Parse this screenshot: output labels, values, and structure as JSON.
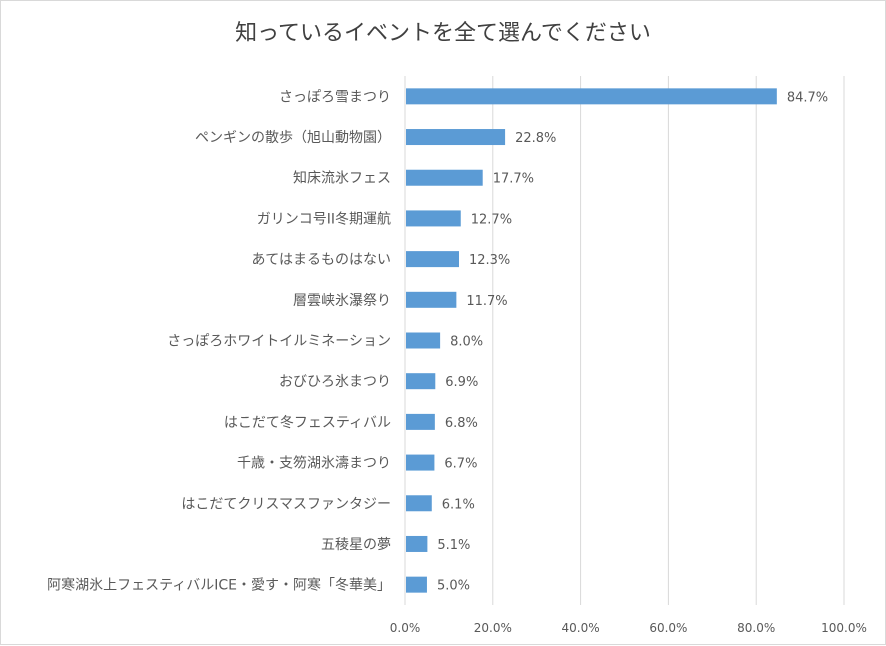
{
  "chart_data": {
    "type": "bar",
    "orientation": "horizontal",
    "title": "知っているイベントを全て選んでください",
    "xlabel": "",
    "ylabel": "",
    "xlim": [
      0,
      100
    ],
    "grid": true,
    "legend": "none",
    "categories": [
      "さっぽろ雪まつり",
      "ペンギンの散歩（旭山動物園）",
      "知床流氷フェス",
      "ガリンコ号II冬期運航",
      "あてはまるものはない",
      "層雲峡氷瀑祭り",
      "さっぽろホワイトイルミネーション",
      "おびひろ氷まつり",
      "はこだて冬フェスティバル",
      "千歳・支笏湖氷濤まつり",
      "はこだてクリスマスファンタジー",
      "五稜星の夢",
      "阿寒湖氷上フェスティバルICE・愛す・阿寒「冬華美」"
    ],
    "values": [
      84.7,
      22.8,
      17.7,
      12.7,
      12.3,
      11.7,
      8.0,
      6.9,
      6.8,
      6.7,
      6.1,
      5.1,
      5.0
    ],
    "value_labels": [
      "84.7%",
      "22.8%",
      "17.7%",
      "12.7%",
      "12.3%",
      "11.7%",
      "8.0%",
      "6.9%",
      "6.8%",
      "6.7%",
      "6.1%",
      "5.1%",
      "5.0%"
    ],
    "ticks": [
      0,
      20,
      40,
      60,
      80,
      100
    ],
    "tick_labels": [
      "0.0%",
      "20.0%",
      "40.0%",
      "60.0%",
      "80.0%",
      "100.0%"
    ],
    "colors": {
      "bar": "#5b9bd5",
      "grid": "#d9d9d9",
      "text": "#595959",
      "title": "#404040"
    }
  }
}
